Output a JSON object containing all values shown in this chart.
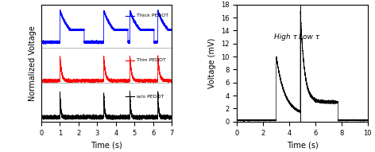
{
  "left_panel": {
    "xlabel": "Time (s)",
    "ylabel": "Normalized Voltage",
    "xlim": [
      0,
      7
    ],
    "xticks": [
      0,
      1,
      2,
      3,
      4,
      5,
      6,
      7
    ],
    "legend_labels": [
      "Thick PEDOT",
      "Thin PEDOT",
      "w/o PEDOT"
    ],
    "legend_colors": [
      "blue",
      "red",
      "black"
    ],
    "pulse_times": [
      1.0,
      3.35,
      4.75,
      6.25
    ],
    "thick_tau": 0.6,
    "thin_tau": 0.08,
    "wo_tau": 0.04,
    "thick_hold_duration": 0.55,
    "thin_hold_duration": 0.0,
    "wo_hold_duration": 0.0
  },
  "right_panel": {
    "xlabel": "Time (s)",
    "ylabel": "Voltage (mV)",
    "xlim": [
      0,
      10
    ],
    "ylim": [
      0,
      18
    ],
    "yticks": [
      0,
      2,
      4,
      6,
      8,
      10,
      12,
      14,
      16,
      18
    ],
    "xticks": [
      0,
      2,
      4,
      6,
      8,
      10
    ],
    "high_tau_label": "High τ",
    "low_tau_label": "Low τ",
    "divider_x": 4.85,
    "pulse1_start": 3.0,
    "pulse1_peak": 10.0,
    "pulse1_tau": 0.65,
    "pulse1_baseline": 1.0,
    "pulse2_start": 4.85,
    "pulse2_peak": 17.0,
    "pulse2_tau": 0.3,
    "pulse2_hold_start": 7.6,
    "pulse2_hold_val": 3.0,
    "pulse2_hold_end": 7.75,
    "baseline_level": 0.2
  }
}
